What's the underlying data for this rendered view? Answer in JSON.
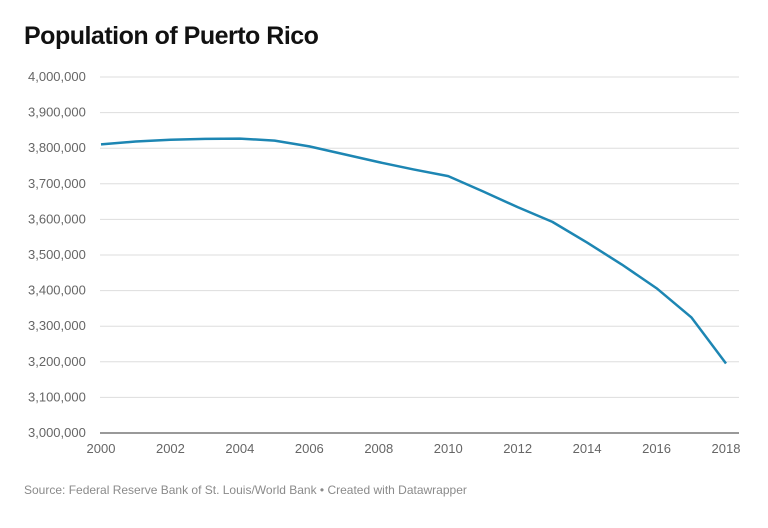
{
  "chart_data": {
    "type": "line",
    "title": "Population of Puerto Rico",
    "xlabel": "",
    "ylabel": "",
    "x": [
      2000,
      2001,
      2002,
      2003,
      2004,
      2005,
      2006,
      2007,
      2008,
      2009,
      2010,
      2011,
      2012,
      2013,
      2014,
      2015,
      2016,
      2017,
      2018
    ],
    "series": [
      {
        "values": [
          3810605,
          3818774,
          3823701,
          3826095,
          3826878,
          3821362,
          3805214,
          3782995,
          3760866,
          3740410,
          3721525,
          3678732,
          3634488,
          3593077,
          3534874,
          3473232,
          3406672,
          3325001,
          3195153
        ]
      }
    ],
    "xticks": [
      "2000",
      "2002",
      "2004",
      "2006",
      "2008",
      "2010",
      "2012",
      "2014",
      "2016",
      "2018"
    ],
    "yticks": [
      "3,000,000",
      "3,100,000",
      "3,200,000",
      "3,300,000",
      "3,400,000",
      "3,500,000",
      "3,600,000",
      "3,700,000",
      "3,800,000",
      "3,900,000",
      "4,000,000"
    ],
    "xlim": [
      2000,
      2018
    ],
    "ylim": [
      3000000,
      4000000
    ],
    "grid": true,
    "line_color": "#1d86b3"
  },
  "footer": "Source: Federal Reserve Bank of St. Louis/World Bank • Created with Datawrapper"
}
